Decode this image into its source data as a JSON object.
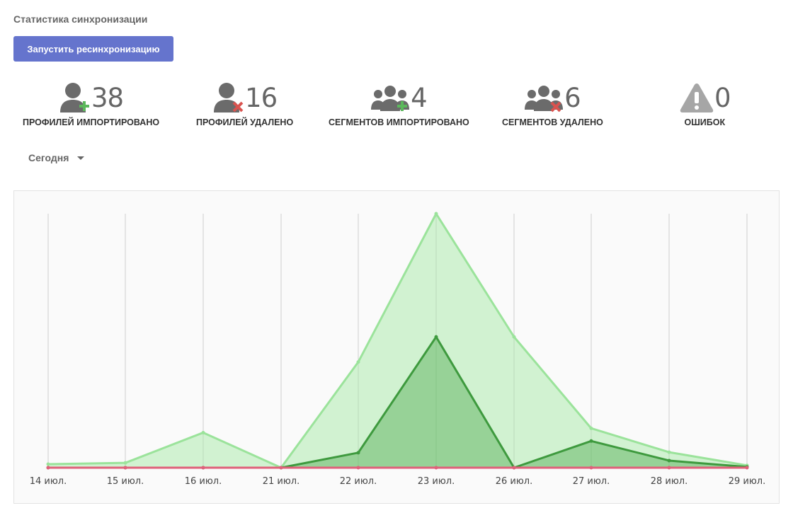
{
  "page": {
    "title": "Статистика синхронизации",
    "resync_label": "Запустить ресинхронизацию",
    "period": "Сегодня"
  },
  "stats": [
    {
      "icon": "user-add-icon",
      "value": "38",
      "label": "ПРОФИЛЕЙ ИМПОРТИРОВАНО"
    },
    {
      "icon": "user-remove-icon",
      "value": "16",
      "label": "ПРОФИЛЕЙ УДАЛЕНО"
    },
    {
      "icon": "users-add-icon",
      "value": "4",
      "label": "СЕГМЕНТОВ ИМПОРТИРОВАНО"
    },
    {
      "icon": "users-remove-icon",
      "value": "6",
      "label": "СЕГМЕНТОВ УДАЛЕНО"
    },
    {
      "icon": "warning-icon",
      "value": "0",
      "label": "ОШИБОК"
    }
  ],
  "colors": {
    "accent": "#6574cd",
    "icon_gray": "#6b6b6b",
    "plus_green": "#5cb85c",
    "cross_red": "#d9534f",
    "series_light": "#9be39b",
    "series_dark": "#3e9a3e",
    "series_red": "#e0607a"
  },
  "chart_data": {
    "type": "area",
    "categories": [
      "14 июл.",
      "15 июл.",
      "16 июл.",
      "21 июл.",
      "22 июл.",
      "23 июл.",
      "26 июл.",
      "27 июл.",
      "28 июл.",
      "29 июл."
    ],
    "series": [
      {
        "values": [
          1.4,
          1.9,
          13.8,
          0,
          41.6,
          100,
          51.5,
          15.5,
          6.1,
          0.9
        ],
        "color": "#9be39b",
        "fill": "rgba(160,232,160,0.45)"
      },
      {
        "values": [
          0,
          0,
          0,
          0,
          5.9,
          51.5,
          0,
          10.5,
          2.8,
          0.3
        ],
        "color": "#3e9a3e",
        "fill": "rgba(80,170,80,0.45)"
      },
      {
        "values": [
          0,
          0,
          0,
          0,
          0,
          0,
          0,
          0,
          0,
          0
        ],
        "color": "#e0607a",
        "fill": "none"
      }
    ],
    "ylim": [
      0,
      100
    ],
    "grid": "vertical"
  }
}
